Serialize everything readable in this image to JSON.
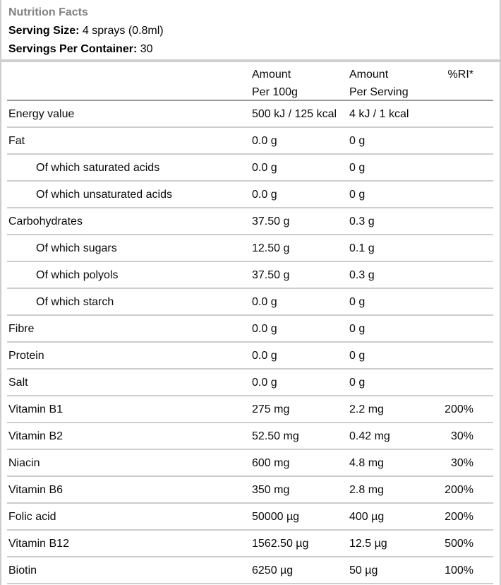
{
  "header": {
    "title": "Nutrition Facts",
    "serving_size_label": "Serving Size:",
    "serving_size_value": " 4 sprays (0.8ml)",
    "servings_per_container_label": "Servings Per Container:",
    "servings_per_container_value": " 30"
  },
  "table": {
    "columns": {
      "per100g_line1": "Amount",
      "per100g_line2": "Per 100g",
      "perServing_line1": "Amount",
      "perServing_line2": "Per Serving",
      "ri": "%RI*"
    },
    "rows": [
      {
        "name": "Energy value",
        "indent": false,
        "per100g": "500 kJ / 125 kcal",
        "perServing": "4 kJ / 1 kcal",
        "ri": ""
      },
      {
        "name": "Fat",
        "indent": false,
        "per100g": "0.0 g",
        "perServing": "0 g",
        "ri": ""
      },
      {
        "name": "Of which saturated acids",
        "indent": true,
        "per100g": "0.0 g",
        "perServing": "0 g",
        "ri": ""
      },
      {
        "name": "Of which unsaturated acids",
        "indent": true,
        "per100g": "0.0 g",
        "perServing": "0 g",
        "ri": ""
      },
      {
        "name": "Carbohydrates",
        "indent": false,
        "per100g": "37.50 g",
        "perServing": "0.3 g",
        "ri": ""
      },
      {
        "name": "Of which sugars",
        "indent": true,
        "per100g": "12.50 g",
        "perServing": "0.1 g",
        "ri": ""
      },
      {
        "name": "Of which polyols",
        "indent": true,
        "per100g": "37.50 g",
        "perServing": "0.3 g",
        "ri": ""
      },
      {
        "name": "Of which starch",
        "indent": true,
        "per100g": "0.0 g",
        "perServing": "0 g",
        "ri": ""
      },
      {
        "name": "Fibre",
        "indent": false,
        "per100g": "0.0 g",
        "perServing": "0 g",
        "ri": ""
      },
      {
        "name": "Protein",
        "indent": false,
        "per100g": "0.0 g",
        "perServing": "0 g",
        "ri": ""
      },
      {
        "name": "Salt",
        "indent": false,
        "per100g": "0.0 g",
        "perServing": "0 g",
        "ri": ""
      },
      {
        "name": "Vitamin B1",
        "indent": false,
        "per100g": "275 mg",
        "perServing": "2.2 mg",
        "ri": "200%"
      },
      {
        "name": "Vitamin B2",
        "indent": false,
        "per100g": "52.50 mg",
        "perServing": "0.42 mg",
        "ri": "30%"
      },
      {
        "name": "Niacin",
        "indent": false,
        "per100g": "600 mg",
        "perServing": "4.8 mg",
        "ri": "30%"
      },
      {
        "name": "Vitamin B6",
        "indent": false,
        "per100g": "350 mg",
        "perServing": "2.8 mg",
        "ri": "200%"
      },
      {
        "name": "Folic acid",
        "indent": false,
        "per100g": "50000 µg",
        "perServing": "400 µg",
        "ri": "200%"
      },
      {
        "name": "Vitamin B12",
        "indent": false,
        "per100g": "1562.50 µg",
        "perServing": "12.5 µg",
        "ri": "500%"
      },
      {
        "name": "Biotin",
        "indent": false,
        "per100g": "6250 µg",
        "perServing": "50 µg",
        "ri": "100%"
      }
    ]
  }
}
